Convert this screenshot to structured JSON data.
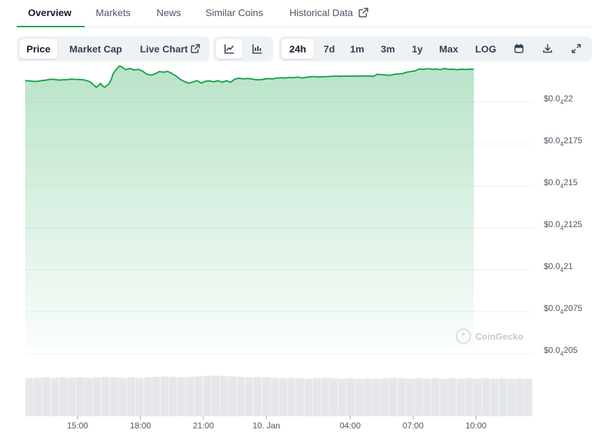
{
  "tabs": [
    {
      "label": "Overview"
    },
    {
      "label": "Markets"
    },
    {
      "label": "News"
    },
    {
      "label": "Similar Coins"
    },
    {
      "label": "Historical Data"
    }
  ],
  "view_toggle": {
    "price": "Price",
    "market_cap": "Market Cap",
    "live_chart": "Live Chart"
  },
  "chart_type_icons": [
    "line-chart-icon",
    "candlestick-icon"
  ],
  "ranges": {
    "r24h": "24h",
    "r7d": "7d",
    "r1m": "1m",
    "r3m": "3m",
    "r1y": "1y",
    "max": "Max",
    "log": "LOG"
  },
  "tool_icons": [
    "calendar-icon",
    "download-icon",
    "fullscreen-icon"
  ],
  "watermark": "CoinGecko",
  "colors": {
    "accent": "#16a34a",
    "line": "#16a34a",
    "volume": "#e5e7eb"
  },
  "chart_data": {
    "type": "area",
    "y_tick_labels": [
      {
        "prefix": "$0.0",
        "sub": "4",
        "rest": "22"
      },
      {
        "prefix": "$0.0",
        "sub": "4",
        "rest": "2175"
      },
      {
        "prefix": "$0.0",
        "sub": "4",
        "rest": "215"
      },
      {
        "prefix": "$0.0",
        "sub": "4",
        "rest": "2125"
      },
      {
        "prefix": "$0.0",
        "sub": "4",
        "rest": "21"
      },
      {
        "prefix": "$0.0",
        "sub": "4",
        "rest": "2075"
      },
      {
        "prefix": "$0.0",
        "sub": "4",
        "rest": "205"
      }
    ],
    "ylim": [
      2.05e-05,
      2.2e-05
    ],
    "xlim_hours": [
      12.5,
      36.7
    ],
    "x_ticks": [
      {
        "label": "15:00",
        "h": 15
      },
      {
        "label": "18:00",
        "h": 18
      },
      {
        "label": "21:00",
        "h": 21
      },
      {
        "label": "10. Jan",
        "h": 24
      },
      {
        "label": "04:00",
        "h": 28
      },
      {
        "label": "07:00",
        "h": 31
      },
      {
        "label": "10:00",
        "h": 34
      }
    ],
    "series_rest": [
      [
        12.5,
        2103
      ],
      [
        12.7,
        2101
      ],
      [
        12.9,
        2098
      ],
      [
        13.1,
        2099
      ],
      [
        13.3,
        2103
      ],
      [
        13.5,
        2106
      ],
      [
        13.7,
        2111
      ],
      [
        13.9,
        2110
      ],
      [
        14.1,
        2106
      ],
      [
        14.3,
        2108
      ],
      [
        14.5,
        2108
      ],
      [
        14.7,
        2112
      ],
      [
        14.9,
        2110
      ],
      [
        15.1,
        2109
      ],
      [
        15.3,
        2107
      ],
      [
        15.5,
        2100
      ],
      [
        15.6,
        2095
      ],
      [
        15.7,
        2085
      ],
      [
        15.8,
        2072
      ],
      [
        15.9,
        2063
      ],
      [
        16.0,
        2074
      ],
      [
        16.1,
        2086
      ],
      [
        16.2,
        2070
      ],
      [
        16.3,
        2063
      ],
      [
        16.4,
        2074
      ],
      [
        16.5,
        2084
      ],
      [
        16.6,
        2108
      ],
      [
        16.7,
        2145
      ],
      [
        16.8,
        2162
      ],
      [
        16.9,
        2178
      ],
      [
        17.0,
        2190
      ],
      [
        17.1,
        2185
      ],
      [
        17.3,
        2168
      ],
      [
        17.5,
        2175
      ],
      [
        17.7,
        2166
      ],
      [
        17.9,
        2170
      ],
      [
        18.1,
        2159
      ],
      [
        18.3,
        2141
      ],
      [
        18.5,
        2135
      ],
      [
        18.7,
        2143
      ],
      [
        18.9,
        2157
      ],
      [
        19.1,
        2153
      ],
      [
        19.3,
        2158
      ],
      [
        19.5,
        2145
      ],
      [
        19.7,
        2130
      ],
      [
        19.9,
        2110
      ],
      [
        20.1,
        2097
      ],
      [
        20.3,
        2087
      ],
      [
        20.5,
        2095
      ],
      [
        20.7,
        2103
      ],
      [
        20.9,
        2088
      ],
      [
        21.1,
        2099
      ],
      [
        21.3,
        2101
      ],
      [
        21.5,
        2096
      ],
      [
        21.7,
        2102
      ],
      [
        21.9,
        2093
      ],
      [
        22.1,
        2102
      ],
      [
        22.3,
        2093
      ],
      [
        22.5,
        2112
      ],
      [
        22.7,
        2117
      ],
      [
        22.9,
        2113
      ],
      [
        23.1,
        2116
      ],
      [
        23.3,
        2113
      ],
      [
        23.5,
        2108
      ],
      [
        23.7,
        2108
      ],
      [
        23.9,
        2112
      ],
      [
        24.1,
        2115
      ],
      [
        24.3,
        2113
      ],
      [
        24.5,
        2118
      ],
      [
        24.7,
        2120
      ],
      [
        24.9,
        2118
      ],
      [
        25.1,
        2122
      ],
      [
        25.3,
        2120
      ],
      [
        25.5,
        2124
      ],
      [
        25.7,
        2118
      ],
      [
        25.9,
        2123
      ],
      [
        26.1,
        2125
      ],
      [
        26.3,
        2127
      ],
      [
        26.5,
        2124
      ],
      [
        26.7,
        2126
      ],
      [
        26.9,
        2126
      ],
      [
        27.1,
        2128
      ],
      [
        27.3,
        2130
      ],
      [
        27.5,
        2128
      ],
      [
        27.7,
        2130
      ],
      [
        27.9,
        2129
      ],
      [
        28.1,
        2130
      ],
      [
        28.3,
        2129
      ],
      [
        28.5,
        2131
      ],
      [
        28.7,
        2130
      ],
      [
        28.9,
        2131
      ],
      [
        29.1,
        2128
      ],
      [
        29.3,
        2141
      ],
      [
        29.5,
        2138
      ],
      [
        29.7,
        2136
      ],
      [
        29.9,
        2134
      ],
      [
        30.1,
        2140
      ],
      [
        30.3,
        2143
      ],
      [
        30.5,
        2145
      ],
      [
        30.7,
        2153
      ],
      [
        30.9,
        2157
      ],
      [
        31.1,
        2161
      ],
      [
        31.3,
        2172
      ],
      [
        31.5,
        2170
      ],
      [
        31.7,
        2174
      ],
      [
        31.9,
        2170
      ],
      [
        32.1,
        2172
      ],
      [
        32.3,
        2168
      ],
      [
        32.5,
        2175
      ],
      [
        32.7,
        2170
      ],
      [
        32.9,
        2171
      ],
      [
        33.1,
        2168
      ],
      [
        33.3,
        2171
      ],
      [
        33.5,
        2169
      ],
      [
        33.7,
        2171
      ],
      [
        33.9,
        2170
      ]
    ],
    "series_value_base": 2e-05,
    "series_value_unit": 1e-09,
    "grid": true,
    "volume": [
      0.82,
      0.83,
      0.84,
      0.83,
      0.84,
      0.83,
      0.84,
      0.83,
      0.84,
      0.85,
      0.84,
      0.83,
      0.84,
      0.83,
      0.84,
      0.85,
      0.86,
      0.85,
      0.84,
      0.85,
      0.86,
      0.87,
      0.88,
      0.87,
      0.86,
      0.85,
      0.84,
      0.85,
      0.84,
      0.83,
      0.82,
      0.83,
      0.82,
      0.81,
      0.82,
      0.83,
      0.82,
      0.81,
      0.82,
      0.81,
      0.82,
      0.81,
      0.82,
      0.83,
      0.82,
      0.81,
      0.82,
      0.81,
      0.82,
      0.81,
      0.82,
      0.81,
      0.82,
      0.81,
      0.82,
      0.81,
      0.82,
      0.81,
      0.82,
      0.81
    ]
  }
}
